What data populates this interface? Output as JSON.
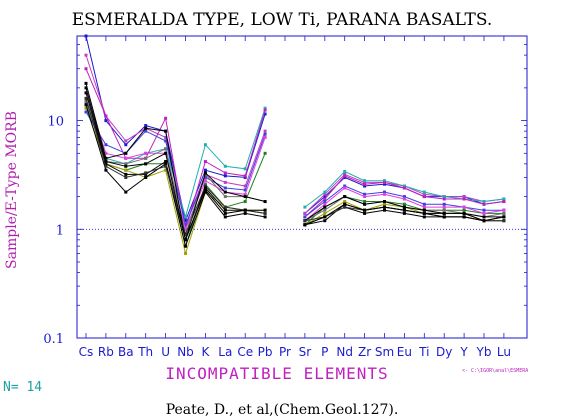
{
  "chart_data": {
    "type": "line",
    "title": "ESMERALDA TYPE, LOW Ti, PARANA BASALTS.",
    "ylabel": "Sample/E-Type MORB",
    "xlabel": "INCOMPATIBLE ELEMENTS",
    "y_scale": "log",
    "ylim": [
      0.1,
      60
    ],
    "y_ticks": [
      {
        "value": 0.1,
        "label": "0.1"
      },
      {
        "value": 1,
        "label": "1"
      },
      {
        "value": 10,
        "label": "10"
      }
    ],
    "reference_line": 1,
    "categories": [
      "Cs",
      "Rb",
      "Ba",
      "Th",
      "U",
      "Nb",
      "K",
      "La",
      "Ce",
      "Pb",
      "Pr",
      "Sr",
      "P",
      "Nd",
      "Zr",
      "Sm",
      "Eu",
      "Ti",
      "Dy",
      "Y",
      "Yb",
      "Lu"
    ],
    "series": [
      {
        "color": "#1a1ad0",
        "values": [
          60,
          10,
          6.0,
          9.0,
          8.0,
          1.2,
          3.5,
          3.1,
          3.0,
          11.5,
          null,
          1.4,
          2.0,
          3.0,
          2.5,
          2.6,
          2.4,
          2.0,
          2.0,
          2.0,
          1.7,
          1.8
        ]
      },
      {
        "color": "#c040c0",
        "values": [
          40,
          11,
          6.5,
          8.5,
          7.0,
          1.1,
          3.2,
          2.7,
          2.5,
          8.0,
          null,
          1.4,
          2.1,
          3.2,
          2.7,
          2.7,
          2.5,
          2.1,
          2.0,
          2.0,
          1.8,
          1.9
        ]
      },
      {
        "color": "#20b0b0",
        "values": [
          14,
          4.5,
          4.0,
          5.0,
          5.5,
          1.3,
          6.0,
          3.8,
          3.6,
          13.0,
          null,
          1.6,
          2.2,
          3.4,
          2.8,
          2.8,
          2.5,
          2.2,
          2.0,
          1.9,
          1.8,
          1.9
        ]
      },
      {
        "color": "#c020c0",
        "values": [
          30,
          11,
          4.5,
          4.5,
          10.5,
          1.0,
          4.2,
          3.3,
          3.1,
          12.5,
          null,
          1.3,
          1.9,
          3.1,
          2.6,
          2.7,
          2.4,
          2.0,
          1.9,
          1.9,
          1.7,
          1.8
        ]
      },
      {
        "color": "#208020",
        "values": [
          16,
          4.0,
          3.5,
          4.0,
          4.0,
          0.7,
          2.6,
          1.6,
          1.8,
          5.0,
          null,
          1.1,
          1.6,
          2.0,
          1.8,
          1.8,
          1.7,
          1.5,
          1.5,
          1.5,
          1.4,
          1.4
        ]
      },
      {
        "color": "#a0a000",
        "values": [
          13,
          4.0,
          3.5,
          3.0,
          3.5,
          0.6,
          2.2,
          1.6,
          1.5,
          1.5,
          null,
          1.1,
          1.4,
          1.8,
          1.5,
          1.7,
          1.6,
          1.4,
          1.4,
          1.4,
          1.2,
          1.3
        ]
      },
      {
        "color": "#4040e0",
        "values": [
          12,
          6.0,
          5.0,
          8.0,
          6.5,
          1.1,
          3.0,
          2.4,
          2.3,
          7.5,
          null,
          1.3,
          1.8,
          2.5,
          2.1,
          2.2,
          2.0,
          1.7,
          1.7,
          1.6,
          1.5,
          1.5
        ]
      },
      {
        "color": "#e040e0",
        "values": [
          18,
          5.0,
          4.5,
          5.0,
          5.0,
          1.0,
          2.8,
          2.2,
          2.1,
          7.0,
          null,
          1.2,
          1.7,
          2.4,
          2.0,
          2.1,
          1.9,
          1.6,
          1.6,
          1.6,
          1.4,
          1.5
        ]
      },
      {
        "color": "#707070",
        "values": [
          15,
          4.2,
          4.0,
          4.5,
          5.5,
          0.9,
          3.2,
          2.0,
          2.0,
          1.8,
          null,
          1.2,
          1.5,
          2.0,
          1.7,
          1.8,
          1.6,
          1.5,
          1.5,
          1.4,
          1.3,
          1.4
        ]
      },
      {
        "color": "#000000",
        "values": [
          22,
          4.5,
          5.0,
          8.5,
          8.0,
          0.8,
          3.3,
          2.2,
          2.0,
          1.8,
          null,
          1.2,
          1.6,
          2.0,
          1.7,
          1.8,
          1.6,
          1.5,
          1.4,
          1.4,
          1.3,
          1.3
        ]
      },
      {
        "color": "#000000",
        "values": [
          18,
          4.0,
          3.2,
          3.2,
          4.2,
          0.8,
          2.3,
          1.4,
          1.5,
          1.4,
          null,
          1.1,
          1.2,
          1.7,
          1.5,
          1.6,
          1.5,
          1.4,
          1.4,
          1.4,
          1.2,
          1.3
        ]
      },
      {
        "color": "#000000",
        "values": [
          14,
          3.5,
          2.2,
          3.0,
          4.0,
          0.7,
          2.2,
          1.3,
          1.4,
          1.3,
          null,
          1.1,
          1.3,
          1.6,
          1.4,
          1.5,
          1.4,
          1.3,
          1.3,
          1.3,
          1.2,
          1.2
        ]
      },
      {
        "color": "#303030",
        "values": [
          16,
          3.8,
          3.0,
          3.3,
          3.8,
          0.9,
          2.5,
          1.6,
          1.5,
          1.4,
          null,
          1.2,
          1.3,
          1.6,
          1.5,
          1.6,
          1.5,
          1.4,
          1.3,
          1.3,
          1.2,
          1.2
        ]
      },
      {
        "color": "#000000",
        "values": [
          20,
          4.2,
          3.8,
          4.0,
          5.0,
          0.8,
          2.4,
          1.5,
          1.5,
          1.5,
          null,
          1.1,
          1.3,
          1.7,
          1.5,
          1.6,
          1.5,
          1.4,
          1.3,
          1.3,
          1.2,
          1.3
        ]
      }
    ],
    "count_label": "N= 14",
    "file_label": "<- C:\\IGOR\\anal\\ESMERA",
    "source": "Peate, D., et al,(Chem.Geol.127)."
  }
}
